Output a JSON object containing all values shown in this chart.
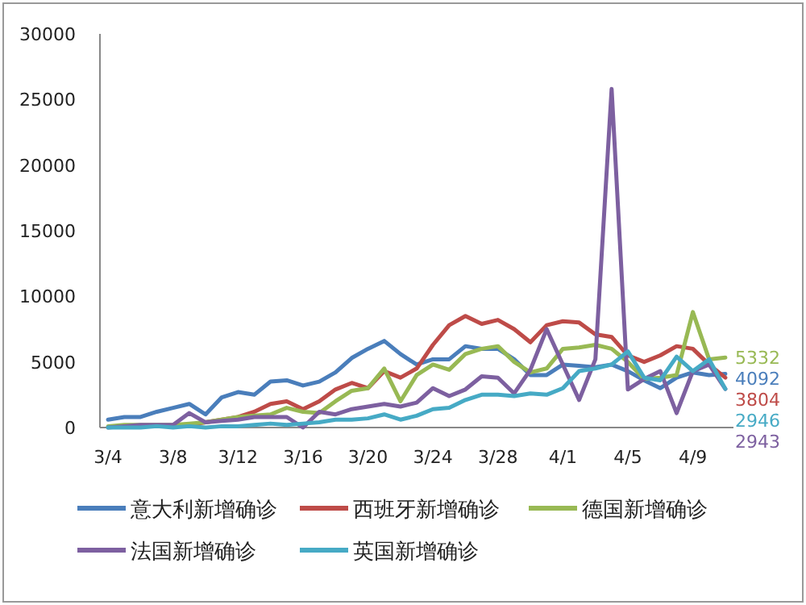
{
  "chart_data": {
    "type": "line",
    "categories": [
      "3/4",
      null,
      null,
      null,
      "3/8",
      null,
      null,
      null,
      "3/12",
      null,
      null,
      null,
      "3/16",
      null,
      null,
      null,
      "3/20",
      null,
      null,
      null,
      "3/24",
      null,
      null,
      null,
      "3/28",
      null,
      null,
      null,
      "4/1",
      null,
      null,
      null,
      "4/5",
      null,
      null,
      null,
      "4/9",
      null,
      null
    ],
    "ylim": [
      0,
      30000
    ],
    "yticks": [
      0,
      5000,
      10000,
      15000,
      20000,
      25000,
      30000
    ],
    "grid": false,
    "legend": "bottom",
    "marker": "none",
    "line_style": "solid",
    "series": [
      {
        "name": "意大利新增确诊",
        "color": "#4a7ebb",
        "values": [
          600,
          800,
          800,
          1200,
          1500,
          1800,
          1000,
          2300,
          2700,
          2500,
          3500,
          3600,
          3200,
          3500,
          4200,
          5300,
          6000,
          6600,
          5600,
          4800,
          5200,
          5200,
          6200,
          6000,
          6000,
          5200,
          4000,
          4000,
          4800,
          4700,
          4600,
          4800,
          4300,
          3600,
          3000,
          3800,
          4200,
          4000,
          4092
        ],
        "value_labels": [
          null,
          null,
          null,
          null,
          null,
          null,
          null,
          null,
          null,
          null,
          null,
          null,
          null,
          null,
          null,
          null,
          null,
          null,
          null,
          null,
          null,
          null,
          null,
          null,
          null,
          null,
          null,
          null,
          null,
          null,
          null,
          null,
          null,
          null,
          null,
          null,
          null,
          null,
          "4092"
        ]
      },
      {
        "name": "西班牙新增确诊",
        "color": "#be4b48",
        "values": [
          null,
          null,
          null,
          null,
          null,
          200,
          400,
          600,
          800,
          1200,
          1800,
          2000,
          1400,
          2000,
          2900,
          3400,
          3000,
          4300,
          3800,
          4500,
          6300,
          7800,
          8500,
          7900,
          8200,
          7500,
          6500,
          7800,
          8100,
          8000,
          7100,
          6900,
          5500,
          5000,
          5500,
          6200,
          6000,
          4800,
          3804
        ],
        "value_labels": [
          null,
          null,
          null,
          null,
          null,
          null,
          null,
          null,
          null,
          null,
          null,
          null,
          null,
          null,
          null,
          null,
          null,
          null,
          null,
          null,
          null,
          null,
          null,
          null,
          null,
          null,
          null,
          null,
          null,
          null,
          null,
          null,
          null,
          null,
          null,
          null,
          null,
          null,
          "3804"
        ]
      },
      {
        "name": "德国新增确诊",
        "color": "#98b954",
        "values": [
          100,
          200,
          200,
          200,
          200,
          300,
          400,
          600,
          800,
          900,
          1000,
          1500,
          1200,
          1100,
          2000,
          2800,
          3000,
          4500,
          2000,
          4000,
          4800,
          4400,
          5600,
          6000,
          6200,
          5000,
          4200,
          4500,
          6000,
          6100,
          6300,
          6000,
          5000,
          3700,
          3800,
          4000,
          8800,
          5200,
          5332
        ],
        "value_labels": [
          null,
          null,
          null,
          null,
          null,
          null,
          null,
          null,
          null,
          null,
          null,
          null,
          null,
          null,
          null,
          null,
          null,
          null,
          null,
          null,
          null,
          null,
          null,
          null,
          null,
          null,
          null,
          null,
          null,
          null,
          null,
          null,
          null,
          null,
          null,
          null,
          null,
          null,
          "5332"
        ]
      },
      {
        "name": "法国新增确诊",
        "color": "#7d60a0",
        "values": [
          0,
          100,
          200,
          200,
          200,
          1100,
          400,
          500,
          600,
          800,
          800,
          800,
          0,
          1200,
          1000,
          1400,
          1600,
          1800,
          1600,
          1900,
          3000,
          2400,
          2900,
          3900,
          3800,
          2600,
          4400,
          7500,
          4800,
          2100,
          5200,
          25800,
          2900,
          3700,
          4300,
          1100,
          4300,
          4800,
          2943
        ],
        "value_labels": [
          null,
          null,
          null,
          null,
          null,
          null,
          null,
          null,
          null,
          null,
          null,
          null,
          null,
          null,
          null,
          null,
          null,
          null,
          null,
          null,
          null,
          null,
          null,
          null,
          null,
          null,
          null,
          null,
          null,
          null,
          null,
          null,
          null,
          null,
          null,
          null,
          null,
          null,
          "2943"
        ]
      },
      {
        "name": "英国新增确诊",
        "color": "#46aac5",
        "values": [
          0,
          0,
          0,
          100,
          0,
          100,
          0,
          100,
          100,
          200,
          300,
          200,
          300,
          400,
          600,
          600,
          700,
          1000,
          600,
          900,
          1400,
          1500,
          2100,
          2500,
          2500,
          2400,
          2600,
          2500,
          3000,
          4300,
          4500,
          4800,
          5800,
          3800,
          3600,
          5400,
          4300,
          5200,
          2946
        ],
        "value_labels": [
          null,
          null,
          null,
          null,
          null,
          null,
          null,
          null,
          null,
          null,
          null,
          null,
          null,
          null,
          null,
          null,
          null,
          null,
          null,
          null,
          null,
          null,
          null,
          null,
          null,
          null,
          null,
          null,
          null,
          null,
          null,
          null,
          null,
          null,
          null,
          null,
          null,
          null,
          "2946"
        ]
      }
    ]
  }
}
